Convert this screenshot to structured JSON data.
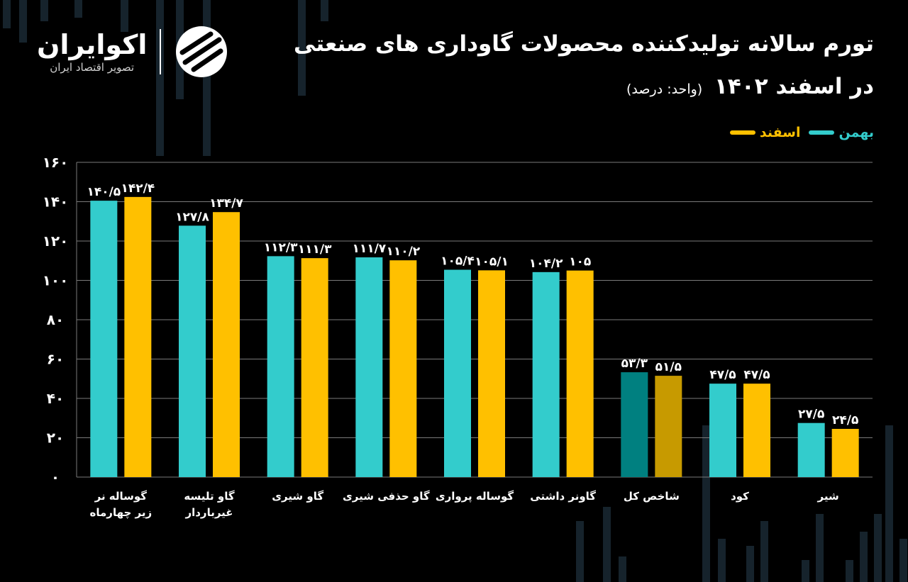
{
  "header": {
    "title_line1": "تورم سالانه تولیدکننده محصولات گاوداری های صنعتی",
    "title_line2": "در اسفند ۱۴۰۲",
    "unit_note": "(واحد: درصد)"
  },
  "brand": {
    "name": "اکوایران",
    "tagline": "تصویر اقتصاد ایران"
  },
  "colors": {
    "bahman": "#33cccc",
    "esfand": "#ffc000",
    "bahman_highlight": "#008080",
    "esfand_highlight": "#c79a00",
    "grid": "#7a7a7a",
    "text": "#ffffff"
  },
  "chart_data": {
    "type": "bar",
    "orientation": "vertical",
    "categories": [
      [
        "گوساله نر",
        "زیر چهارماه"
      ],
      [
        "گاو تلیسه",
        "غیرباردار"
      ],
      [
        "گاو شیری"
      ],
      [
        "گاو حذفی شیری"
      ],
      [
        "گوساله پرواری"
      ],
      [
        "گاونر داشتی"
      ],
      [
        "شاخص کل"
      ],
      [
        "کود"
      ],
      [
        "شیر"
      ]
    ],
    "series": [
      {
        "name": "بهمن",
        "values": [
          140.5,
          127.8,
          112.3,
          111.7,
          105.4,
          104.2,
          53.3,
          47.5,
          27.5
        ],
        "labels": [
          "۱۴۰/۵",
          "۱۲۷/۸",
          "۱۱۲/۳",
          "۱۱۱/۷",
          "۱۰۵/۴",
          "۱۰۴/۲",
          "۵۳/۳",
          "۴۷/۵",
          "۲۷/۵"
        ]
      },
      {
        "name": "اسفند",
        "values": [
          142.4,
          134.7,
          111.3,
          110.2,
          105.1,
          105,
          51.5,
          47.5,
          24.5
        ],
        "labels": [
          "۱۴۲/۴",
          "۱۳۴/۷",
          "۱۱۱/۳",
          "۱۱۰/۲",
          "۱۰۵/۱",
          "۱۰۵",
          "۵۱/۵",
          "۴۷/۵",
          "۲۴/۵"
        ]
      }
    ],
    "highlight_category_index": 6,
    "ylim": [
      0,
      160
    ],
    "yticks": [
      0,
      20,
      40,
      60,
      80,
      100,
      120,
      140,
      160
    ],
    "ytick_labels": [
      "۰",
      "۲۰",
      "۴۰",
      "۶۰",
      "۸۰",
      "۱۰۰",
      "۱۲۰",
      "۱۴۰",
      "۱۶۰"
    ],
    "grid": true,
    "legend_position": "top-right"
  }
}
